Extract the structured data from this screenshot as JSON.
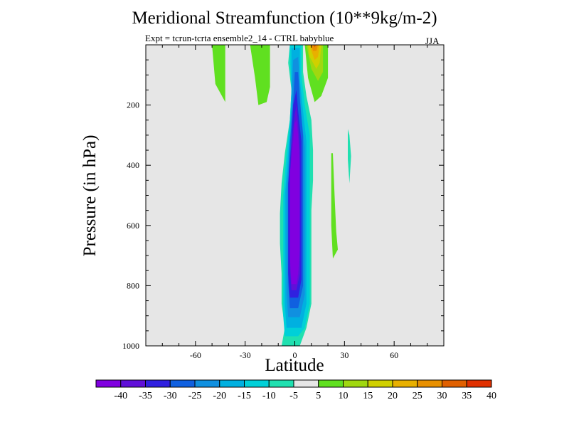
{
  "chart_data": {
    "type": "heatmap",
    "title": "Meridional Streamfunction (10**9kg/m-2)",
    "subtitle": "Expt = tcrun-tcrta  ensemble2_14 - CTRL babyblue",
    "season": "JJA",
    "xlabel": "Latitude",
    "ylabel": "Pressure (in hPa)",
    "xlim": [
      -90,
      90
    ],
    "ylim": [
      1000,
      0
    ],
    "x_ticks": [
      -60,
      -30,
      0,
      30,
      60
    ],
    "y_ticks": [
      200,
      400,
      600,
      800,
      1000
    ],
    "x_tick_labels": [
      "-60",
      "-30",
      "0",
      "30",
      "60"
    ],
    "y_tick_labels": [
      "200",
      "400",
      "600",
      "800",
      "1000"
    ],
    "background": "#e6e6e6",
    "colorbar": {
      "boundaries": [
        -40,
        -35,
        -30,
        -25,
        -20,
        -15,
        -10,
        -5,
        5,
        10,
        15,
        20,
        25,
        30,
        35,
        40
      ],
      "labels": [
        "-40",
        "-35",
        "-30",
        "-25",
        "-20",
        "-15",
        "-10",
        "-5",
        "5",
        "10",
        "15",
        "20",
        "25",
        "30",
        "35",
        "40"
      ],
      "colors": [
        "#8000e0",
        "#6010d8",
        "#3020e0",
        "#1060e0",
        "#1090e0",
        "#00b0e0",
        "#00d0d8",
        "#20e0b0",
        "#e6e6e6",
        "#60e020",
        "#a0d810",
        "#d0d000",
        "#e8b000",
        "#e89000",
        "#e06000",
        "#e03000"
      ]
    },
    "regions": [
      {
        "level": -5,
        "color": "#20e0b0",
        "polygon": [
          [
            -8,
            1005
          ],
          [
            -6,
            940
          ],
          [
            -8,
            860
          ],
          [
            -8,
            760
          ],
          [
            -9,
            660
          ],
          [
            -9,
            560
          ],
          [
            -8,
            460
          ],
          [
            -6,
            360
          ],
          [
            -3,
            250
          ],
          [
            -2,
            150
          ],
          [
            -4,
            60
          ],
          [
            -3,
            0
          ],
          [
            5,
            0
          ],
          [
            5,
            90
          ],
          [
            7,
            170
          ],
          [
            10,
            250
          ],
          [
            11,
            350
          ],
          [
            11,
            450
          ],
          [
            10,
            550
          ],
          [
            10,
            650
          ],
          [
            10,
            760
          ],
          [
            10,
            860
          ],
          [
            7,
            940
          ],
          [
            3,
            1005
          ]
        ]
      },
      {
        "level": -10,
        "color": "#00d0d8",
        "polygon": [
          [
            -6,
            968
          ],
          [
            -7,
            900
          ],
          [
            -7,
            800
          ],
          [
            -7,
            650
          ],
          [
            -7,
            500
          ],
          [
            -5,
            360
          ],
          [
            -3,
            250
          ],
          [
            -2,
            150
          ],
          [
            -3,
            40
          ],
          [
            -3,
            0
          ],
          [
            4,
            0
          ],
          [
            4,
            100
          ],
          [
            6,
            200
          ],
          [
            9,
            300
          ],
          [
            9,
            400
          ],
          [
            9,
            600
          ],
          [
            9,
            760
          ],
          [
            9,
            860
          ],
          [
            6,
            940
          ],
          [
            2,
            968
          ]
        ]
      },
      {
        "level": -15,
        "color": "#00b0e0",
        "polygon": [
          [
            -5,
            940
          ],
          [
            -6,
            860
          ],
          [
            -6,
            700
          ],
          [
            -6,
            500
          ],
          [
            -4,
            360
          ],
          [
            -2,
            200
          ],
          [
            -2,
            50
          ],
          [
            -2,
            10
          ],
          [
            3,
            10
          ],
          [
            3,
            110
          ],
          [
            5,
            220
          ],
          [
            7,
            320
          ],
          [
            7,
            500
          ],
          [
            7,
            700
          ],
          [
            7,
            860
          ],
          [
            4,
            940
          ]
        ]
      },
      {
        "level": -20,
        "color": "#1090e0",
        "polygon": [
          [
            -4,
            905
          ],
          [
            -5,
            830
          ],
          [
            -5,
            650
          ],
          [
            -5,
            480
          ],
          [
            -3,
            340
          ],
          [
            -2,
            200
          ],
          [
            -1,
            50
          ],
          [
            2,
            40
          ],
          [
            3,
            130
          ],
          [
            4,
            240
          ],
          [
            6,
            340
          ],
          [
            6,
            500
          ],
          [
            6,
            700
          ],
          [
            6,
            830
          ],
          [
            3,
            905
          ]
        ]
      },
      {
        "level": -25,
        "color": "#1060e0",
        "polygon": [
          [
            -3,
            875
          ],
          [
            -4,
            790
          ],
          [
            -4,
            620
          ],
          [
            -4,
            470
          ],
          [
            -3,
            330
          ],
          [
            -1,
            190
          ],
          [
            0,
            90
          ],
          [
            2,
            90
          ],
          [
            3,
            180
          ],
          [
            5,
            300
          ],
          [
            5,
            500
          ],
          [
            5,
            650
          ],
          [
            5,
            800
          ],
          [
            2,
            875
          ]
        ]
      },
      {
        "level": -30,
        "color": "#3020e0",
        "polygon": [
          [
            -3,
            840
          ],
          [
            -4,
            760
          ],
          [
            -4,
            600
          ],
          [
            -4,
            460
          ],
          [
            -2,
            320
          ],
          [
            -1,
            200
          ],
          [
            1,
            150
          ],
          [
            2,
            220
          ],
          [
            4,
            320
          ],
          [
            4,
            500
          ],
          [
            4,
            650
          ],
          [
            4,
            780
          ],
          [
            2,
            840
          ]
        ]
      },
      {
        "level": -35,
        "color": "#6010d8",
        "polygon": [
          [
            -2,
            815
          ],
          [
            -3,
            740
          ],
          [
            -3,
            600
          ],
          [
            -3,
            460
          ],
          [
            -2,
            330
          ],
          [
            0,
            230
          ],
          [
            1,
            200
          ],
          [
            2,
            260
          ],
          [
            3,
            350
          ],
          [
            3,
            500
          ],
          [
            3,
            650
          ],
          [
            3,
            760
          ],
          [
            1,
            815
          ]
        ]
      },
      {
        "level": -40,
        "color": "#8000e0",
        "polygon": [
          [
            -2,
            795
          ],
          [
            -3,
            700
          ],
          [
            -3,
            560
          ],
          [
            -3,
            430
          ],
          [
            -1,
            320
          ],
          [
            0,
            260
          ],
          [
            1,
            250
          ],
          [
            2,
            300
          ],
          [
            3,
            400
          ],
          [
            3,
            550
          ],
          [
            3,
            680
          ],
          [
            2,
            760
          ],
          [
            1,
            795
          ]
        ]
      },
      {
        "level": 5,
        "color": "#60e020",
        "polygon": [
          [
            -50,
            0
          ],
          [
            -42,
            0
          ],
          [
            -42,
            160
          ],
          [
            -42,
            190
          ],
          [
            -48,
            130
          ]
        ]
      },
      {
        "level": 5,
        "color": "#60e020",
        "polygon": [
          [
            -27,
            0
          ],
          [
            -15,
            0
          ],
          [
            -15,
            140
          ],
          [
            -17,
            190
          ],
          [
            -22,
            200
          ],
          [
            -24,
            110
          ]
        ]
      },
      {
        "level": 5,
        "color": "#60e020",
        "polygon": [
          [
            6,
            0
          ],
          [
            20,
            0
          ],
          [
            20,
            110
          ],
          [
            16,
            170
          ],
          [
            12,
            190
          ],
          [
            8,
            110
          ]
        ]
      },
      {
        "level": 10,
        "color": "#a0d810",
        "polygon": [
          [
            7,
            0
          ],
          [
            17,
            0
          ],
          [
            17,
            90
          ],
          [
            14,
            120
          ],
          [
            10,
            80
          ]
        ]
      },
      {
        "level": 15,
        "color": "#d0d000",
        "polygon": [
          [
            8,
            0
          ],
          [
            16,
            0
          ],
          [
            15,
            60
          ],
          [
            13,
            80
          ],
          [
            9,
            40
          ]
        ]
      },
      {
        "level": 20,
        "color": "#e8b000",
        "polygon": [
          [
            9,
            0
          ],
          [
            15,
            0
          ],
          [
            14,
            40
          ],
          [
            12,
            50
          ],
          [
            10,
            20
          ]
        ]
      },
      {
        "level": 25,
        "color": "#e89000",
        "polygon": [
          [
            10,
            0
          ],
          [
            14,
            0
          ],
          [
            13,
            20
          ],
          [
            11,
            20
          ]
        ]
      },
      {
        "level": 30,
        "color": "#e06000",
        "polygon": [
          [
            11,
            0
          ],
          [
            13,
            0
          ],
          [
            12,
            8
          ]
        ]
      },
      {
        "level": 5,
        "color": "#60e020",
        "polygon": [
          [
            22,
            360
          ],
          [
            23,
            360
          ],
          [
            24,
            500
          ],
          [
            25,
            620
          ],
          [
            26,
            680
          ],
          [
            23,
            710
          ],
          [
            22,
            600
          ],
          [
            22,
            450
          ]
        ]
      },
      {
        "level": -5,
        "color": "#20e0b0",
        "polygon": [
          [
            32,
            280
          ],
          [
            33,
            300
          ],
          [
            34,
            370
          ],
          [
            33,
            460
          ],
          [
            32,
            380
          ],
          [
            32,
            320
          ]
        ]
      }
    ]
  }
}
